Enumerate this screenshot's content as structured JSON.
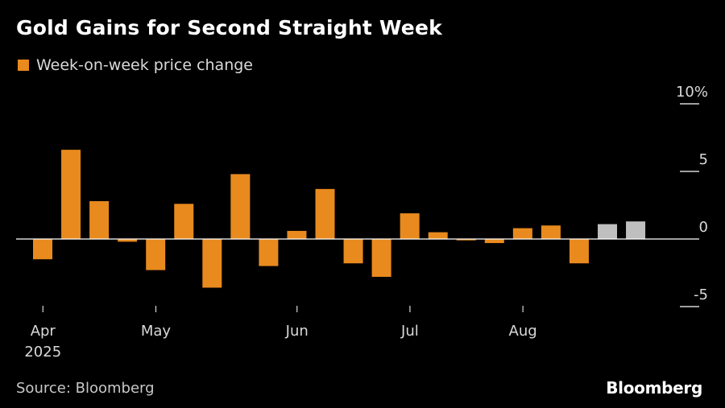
{
  "title": "Gold Gains for Second Straight Week",
  "legend": {
    "label": "Week-on-week price change"
  },
  "source": "Source: Bloomberg",
  "brand": "Bloomberg",
  "colors": {
    "background": "#000000",
    "bar": "#E88A1E",
    "bar_projected": "#BFBFBF",
    "axis": "#FFFFFF",
    "text": "#FFFFFF"
  },
  "chart_data": {
    "type": "bar",
    "ylim": [
      -5,
      10
    ],
    "y_ticks": [
      {
        "value": 10,
        "label": "10%"
      },
      {
        "value": 5,
        "label": "5"
      },
      {
        "value": 0,
        "label": "0"
      },
      {
        "value": -5,
        "label": "-5"
      }
    ],
    "x_ticks": [
      {
        "index": 0.35,
        "label": "Apr",
        "sublabel": "2025"
      },
      {
        "index": 4.35,
        "label": "May",
        "sublabel": ""
      },
      {
        "index": 9.35,
        "label": "Jun",
        "sublabel": ""
      },
      {
        "index": 13.35,
        "label": "Jul",
        "sublabel": ""
      },
      {
        "index": 17.35,
        "label": "Aug",
        "sublabel": ""
      }
    ],
    "series": [
      {
        "values": [
          -1.5,
          6.6,
          2.8,
          -0.2,
          -2.3,
          2.6,
          -3.6,
          4.8,
          -2.0,
          0.6,
          3.7,
          -1.8,
          -2.8,
          1.9,
          0.5,
          -0.1,
          -0.3,
          0.8,
          1.0,
          -1.8,
          1.1,
          1.3
        ],
        "highlight": [
          false,
          false,
          false,
          false,
          false,
          false,
          false,
          false,
          false,
          false,
          false,
          false,
          false,
          false,
          false,
          false,
          false,
          false,
          false,
          false,
          true,
          true
        ]
      }
    ]
  }
}
